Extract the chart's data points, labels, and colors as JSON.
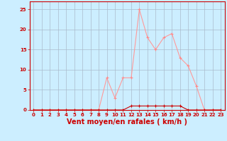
{
  "x": [
    0,
    1,
    2,
    3,
    4,
    5,
    6,
    7,
    8,
    9,
    10,
    11,
    12,
    13,
    14,
    15,
    16,
    17,
    18,
    19,
    20,
    21,
    22,
    23
  ],
  "y_light": [
    0,
    0,
    0,
    0,
    0,
    0,
    0,
    0,
    0,
    8,
    3,
    8,
    8,
    25,
    18,
    15,
    18,
    19,
    13,
    11,
    6,
    0,
    0,
    0
  ],
  "y_dark": [
    0,
    0,
    0,
    0,
    0,
    0,
    0,
    0,
    0,
    0,
    0,
    0,
    1,
    1,
    1,
    1,
    1,
    1,
    1,
    0,
    0,
    0,
    0,
    0
  ],
  "xlabel": "Vent moyen/en rafales ( km/h )",
  "ylim": [
    0,
    27
  ],
  "xlim": [
    -0.5,
    23.5
  ],
  "yticks": [
    0,
    5,
    10,
    15,
    20,
    25
  ],
  "xticks": [
    0,
    1,
    2,
    3,
    4,
    5,
    6,
    7,
    8,
    9,
    10,
    11,
    12,
    13,
    14,
    15,
    16,
    17,
    18,
    19,
    20,
    21,
    22,
    23
  ],
  "bg_color": "#cceeff",
  "grid_color": "#aabbcc",
  "line_light_color": "#ff9999",
  "line_dark_color": "#cc0000",
  "marker_color_light": "#ff8888",
  "marker_color_dark": "#cc0000",
  "axis_color": "#cc0000",
  "tick_color": "#cc0000",
  "label_color": "#cc0000",
  "tick_fontsize": 5.0,
  "ylabel_fontsize": 5.0,
  "xlabel_fontsize": 7.0
}
